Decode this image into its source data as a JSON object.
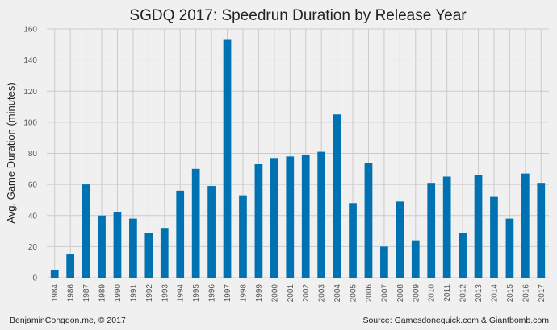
{
  "chart_data": {
    "type": "bar",
    "title": "SGDQ 2017: Speedrun Duration by Release Year",
    "xlabel": "",
    "ylabel": "Avg. Game Duration (minutes)",
    "ylim": [
      0,
      160
    ],
    "yticks": [
      0,
      20,
      40,
      60,
      80,
      100,
      120,
      140,
      160
    ],
    "grid": true,
    "bar_color": "#0072b2",
    "categories": [
      "1984",
      "1986",
      "1987",
      "1989",
      "1990",
      "1991",
      "1992",
      "1993",
      "1994",
      "1995",
      "1996",
      "1997",
      "1998",
      "1999",
      "2000",
      "2001",
      "2002",
      "2003",
      "2004",
      "2005",
      "2006",
      "2007",
      "2008",
      "2009",
      "2010",
      "2011",
      "2012",
      "2013",
      "2014",
      "2015",
      "2016",
      "2017"
    ],
    "values": [
      5,
      15,
      60,
      40,
      42,
      38,
      29,
      32,
      56,
      70,
      59,
      153,
      53,
      73,
      77,
      78,
      79,
      81,
      105,
      48,
      74,
      20,
      49,
      24,
      61,
      65,
      29,
      66,
      52,
      38,
      67,
      61
    ]
  },
  "footer": {
    "left": "BenjaminCongdon.me, © 2017",
    "right": "Source: Gamesdonequick.com & Giantbomb.com"
  }
}
